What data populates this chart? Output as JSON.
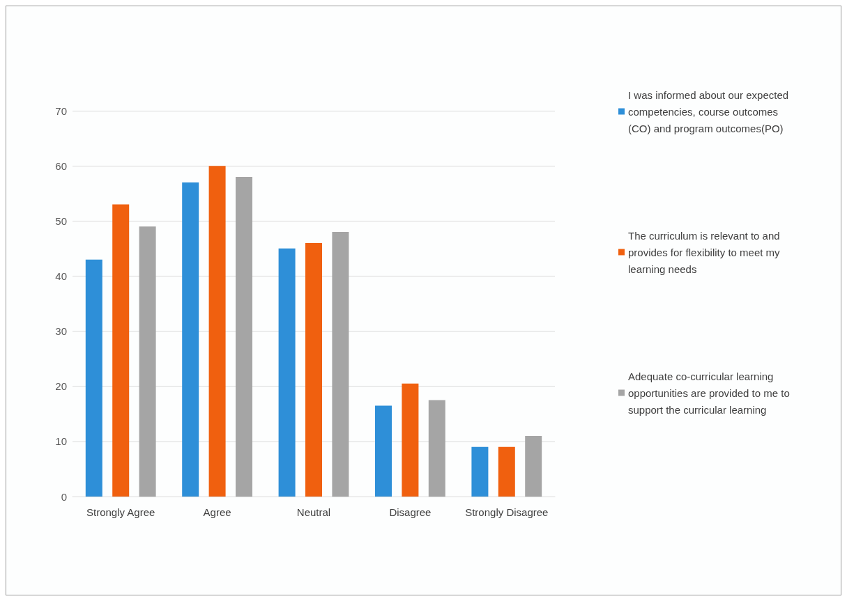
{
  "chart_data": {
    "type": "bar",
    "categories": [
      "Strongly Agree",
      "Agree",
      "Neutral",
      "Disagree",
      "Strongly Disagree"
    ],
    "series": [
      {
        "name": "I was informed about our expected competencies, course outcomes (CO) and program outcomes(PO)",
        "color": "#2e8fd8",
        "values": [
          43,
          57,
          45,
          16.5,
          9
        ]
      },
      {
        "name": "The curriculum is relevant to and provides for flexibility to meet my learning needs",
        "color": "#f0600f",
        "values": [
          53,
          60,
          46,
          20.5,
          9
        ]
      },
      {
        "name": "Adequate co-curricular learning opportunities are provided to me to support the curricular learning",
        "color": "#a5a5a5",
        "values": [
          49,
          58,
          48,
          17.5,
          11
        ]
      }
    ],
    "ylim": [
      0,
      70
    ],
    "yticks": [
      0,
      10,
      20,
      30,
      40,
      50,
      60,
      70
    ],
    "grid": "y",
    "legend": "right"
  }
}
